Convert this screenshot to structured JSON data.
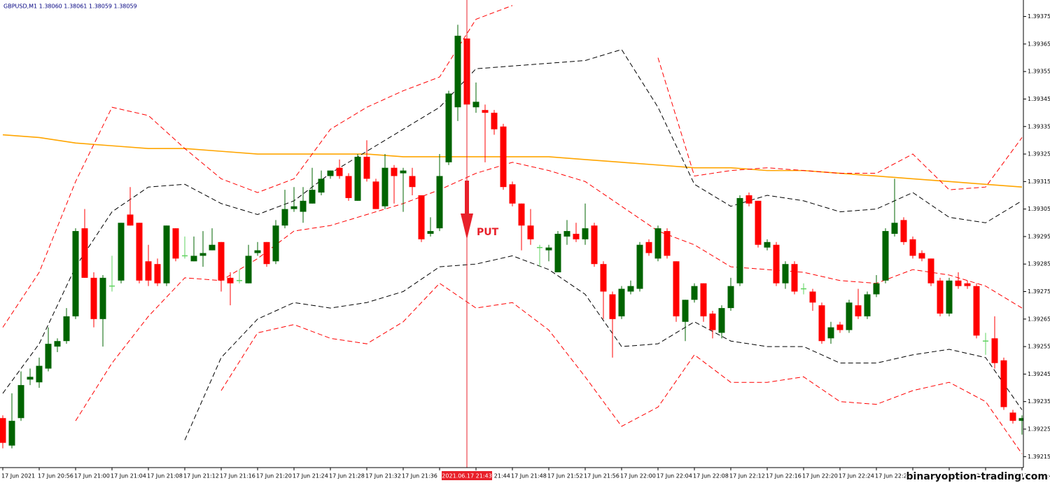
{
  "chart_data": {
    "type": "candlestick",
    "header": "GBPUSD,M1  1.38060 1.38061 1.38059 1.38059",
    "ylim": [
      1.39211,
      1.39381
    ],
    "yticks": [
      1.39215,
      1.39225,
      1.39235,
      1.39245,
      1.39255,
      1.39265,
      1.39275,
      1.39285,
      1.39295,
      1.39305,
      1.39315,
      1.39325,
      1.39335,
      1.39345,
      1.39355,
      1.39365,
      1.39375
    ],
    "x_labels": [
      "17 Jun 2021",
      "17 Jun 20:56",
      "17 Jun 21:00",
      "17 Jun 21:04",
      "17 Jun 21:08",
      "17 Jun 21:12",
      "17 Jun 21:16",
      "17 Jun 21:20",
      "17 Jun 21:24",
      "17 Jun 21:28",
      "17 Jun 21:32",
      "17 Jun 21:36",
      null,
      "17 Jun 21:44",
      "17 Jun 21:48",
      "17 Jun 21:52",
      "17 Jun 21:56",
      "17 Jun 22:00",
      "17 Jun 22:04",
      "17 Jun 22:08",
      "17 Jun 22:12",
      "17 Jun 22:16",
      "17 Jun 22:20",
      "17 Jun 22:24",
      "17 Jun 22:28",
      "17 Jun 22:32",
      "17 Jun 22:36",
      "17 Jun 22:40",
      "17 Jun 22:4"
    ],
    "marker_label": "2021.06.17 21:43",
    "signal": "PUT",
    "watermark": "binaryoption-trading.com",
    "bull_color": "#006400",
    "bear_color": "#ff0000",
    "doji_color": "#5fd35f",
    "signal_color": "#e8202a",
    "candles": {
      "open": [
        1.39229,
        1.39219,
        1.39229,
        1.39243,
        1.39242,
        1.39247,
        1.39255,
        1.39257,
        1.39266,
        1.39298,
        1.3928,
        1.39265,
        1.39277,
        1.39279,
        1.39303,
        1.393,
        1.39286,
        1.39285,
        1.39278,
        1.39298,
        1.39288,
        1.39286,
        1.39288,
        1.3929,
        1.39293,
        1.3928,
        1.39279,
        1.39278,
        1.39289,
        1.39293,
        1.39286,
        1.39299,
        1.39305,
        1.39304,
        1.39307,
        1.39311,
        1.39317,
        1.3932,
        1.39317,
        1.39308,
        1.39324,
        1.39315,
        1.39306,
        1.3932,
        1.39318,
        1.39317,
        1.3931,
        1.39296,
        1.39298,
        1.39322,
        1.39342,
        1.39367,
        1.39342,
        1.39341,
        1.3934,
        1.39335,
        1.39314,
        1.39307,
        1.39299,
        1.39291,
        1.3929,
        1.39282,
        1.39295,
        1.39296,
        1.39294,
        1.39299,
        1.39285,
        1.39274,
        1.39266,
        1.39275,
        1.39276,
        1.39293,
        1.39287,
        1.39297,
        1.39286,
        1.39264,
        1.39272,
        1.39278,
        1.39267,
        1.3926,
        1.39269,
        1.39278,
        1.3931,
        1.39308,
        1.39291,
        1.39292,
        1.39278,
        1.39285,
        1.39276,
        1.39275,
        1.3927,
        1.39258,
        1.39263,
        1.39261,
        1.3927,
        1.39266,
        1.39274,
        1.39279,
        1.39296,
        1.39301,
        1.39294,
        1.39289,
        1.39287,
        1.39279,
        1.39267,
        1.39279,
        1.39278,
        1.39277,
        1.39257,
        1.39258,
        1.3925,
        1.39231,
        1.39228
      ],
      "high": [
        1.3923,
        1.39238,
        1.39246,
        1.39247,
        1.39251,
        1.39262,
        1.39258,
        1.39269,
        1.39298,
        1.39305,
        1.39282,
        1.39281,
        1.39288,
        1.393,
        1.39313,
        1.393,
        1.39292,
        1.39287,
        1.39299,
        1.39298,
        1.39295,
        1.39295,
        1.39297,
        1.39298,
        1.39293,
        1.39282,
        1.39283,
        1.39292,
        1.39293,
        1.39293,
        1.39301,
        1.39312,
        1.39313,
        1.39313,
        1.3932,
        1.39319,
        1.39319,
        1.39323,
        1.39318,
        1.39325,
        1.3933,
        1.39316,
        1.39325,
        1.39321,
        1.3932,
        1.3932,
        1.3931,
        1.39302,
        1.39325,
        1.39348,
        1.39372,
        1.3937,
        1.39351,
        1.39343,
        1.39341,
        1.39336,
        1.39315,
        1.39307,
        1.39305,
        1.39292,
        1.39292,
        1.39297,
        1.39301,
        1.393,
        1.39307,
        1.393,
        1.39286,
        1.39275,
        1.39277,
        1.39279,
        1.39293,
        1.39294,
        1.39299,
        1.39298,
        1.39286,
        1.39272,
        1.39278,
        1.39278,
        1.39268,
        1.3927,
        1.3928,
        1.3931,
        1.39311,
        1.39308,
        1.39294,
        1.39293,
        1.39286,
        1.39286,
        1.39278,
        1.39276,
        1.39271,
        1.39264,
        1.39264,
        1.39272,
        1.39276,
        1.39275,
        1.39281,
        1.39298,
        1.39316,
        1.39302,
        1.39295,
        1.3929,
        1.39287,
        1.3928,
        1.3928,
        1.39282,
        1.39279,
        1.39278,
        1.3926,
        1.39266,
        1.39251,
        1.39232,
        1.3923
      ],
      "low": [
        1.39218,
        1.39218,
        1.39228,
        1.39241,
        1.3924,
        1.39246,
        1.39253,
        1.39256,
        1.39265,
        1.3928,
        1.39262,
        1.39255,
        1.39275,
        1.39278,
        1.39299,
        1.39278,
        1.39277,
        1.39277,
        1.39277,
        1.39286,
        1.39287,
        1.39286,
        1.39284,
        1.3929,
        1.39275,
        1.3927,
        1.39278,
        1.39278,
        1.39288,
        1.39284,
        1.39285,
        1.39298,
        1.39304,
        1.393,
        1.39307,
        1.3931,
        1.39316,
        1.39316,
        1.39308,
        1.39308,
        1.39315,
        1.39305,
        1.39305,
        1.39307,
        1.39304,
        1.3931,
        1.39293,
        1.39295,
        1.39297,
        1.39321,
        1.39337,
        1.39338,
        1.3934,
        1.39322,
        1.39332,
        1.39312,
        1.39306,
        1.3929,
        1.39292,
        1.39284,
        1.39286,
        1.39282,
        1.39292,
        1.39293,
        1.39292,
        1.39284,
        1.39265,
        1.39251,
        1.39265,
        1.39274,
        1.39275,
        1.39288,
        1.39286,
        1.39287,
        1.39264,
        1.39257,
        1.39271,
        1.39264,
        1.39258,
        1.39258,
        1.39268,
        1.39277,
        1.39306,
        1.39291,
        1.3929,
        1.39277,
        1.39276,
        1.39274,
        1.39274,
        1.39268,
        1.39256,
        1.39256,
        1.3926,
        1.3926,
        1.39265,
        1.39265,
        1.39273,
        1.39278,
        1.39295,
        1.39292,
        1.39287,
        1.39286,
        1.39277,
        1.39266,
        1.39266,
        1.39276,
        1.39276,
        1.39258,
        1.39252,
        1.39247,
        1.39232,
        1.39227,
        1.39223
      ],
      "close": [
        1.3922,
        1.39228,
        1.39241,
        1.39244,
        1.39248,
        1.39256,
        1.39257,
        1.39266,
        1.39297,
        1.3928,
        1.39265,
        1.3928,
        1.39277,
        1.393,
        1.39299,
        1.39279,
        1.39279,
        1.39278,
        1.39299,
        1.39287,
        1.39288,
        1.39288,
        1.39289,
        1.39292,
        1.39279,
        1.39278,
        1.39279,
        1.39288,
        1.3929,
        1.39285,
        1.39299,
        1.39305,
        1.39306,
        1.39308,
        1.39312,
        1.39316,
        1.39319,
        1.39317,
        1.39309,
        1.39324,
        1.39316,
        1.39305,
        1.3932,
        1.39317,
        1.39319,
        1.39313,
        1.39294,
        1.39297,
        1.39317,
        1.39347,
        1.39368,
        1.39343,
        1.39344,
        1.3934,
        1.39334,
        1.39313,
        1.39307,
        1.39299,
        1.39294,
        1.39291,
        1.39291,
        1.39296,
        1.39297,
        1.39294,
        1.39298,
        1.39285,
        1.39275,
        1.39265,
        1.39276,
        1.39277,
        1.39292,
        1.39289,
        1.39298,
        1.39288,
        1.39266,
        1.39272,
        1.39277,
        1.39266,
        1.39261,
        1.39269,
        1.39277,
        1.39309,
        1.39307,
        1.39292,
        1.39293,
        1.39278,
        1.39285,
        1.39275,
        1.39276,
        1.39271,
        1.39257,
        1.39262,
        1.39261,
        1.39271,
        1.39266,
        1.39274,
        1.39278,
        1.39297,
        1.393,
        1.39293,
        1.39288,
        1.39287,
        1.39278,
        1.39267,
        1.39279,
        1.39277,
        1.39277,
        1.39259,
        1.39257,
        1.39249,
        1.39233,
        1.39228,
        1.39229
      ]
    },
    "lines": [
      {
        "color": "#ffa500",
        "style": "solid",
        "values": [
          1.39332,
          1.39331,
          1.39329,
          1.39328,
          1.39327,
          1.39327,
          1.39326,
          1.39325,
          1.39325,
          1.39325,
          1.39325,
          1.39324,
          1.39324,
          1.39324,
          1.39324,
          1.39324,
          1.39323,
          1.39322,
          1.39321,
          1.3932,
          1.3932,
          1.39319,
          1.39319,
          1.39318,
          1.39317,
          1.39316,
          1.39315,
          1.39314,
          1.39313
        ]
      },
      {
        "color": "#000000",
        "style": "dashed",
        "values": [
          1.39238,
          1.39256,
          1.39284,
          1.39304,
          1.39313,
          1.39314,
          1.39307,
          1.39303,
          1.39308,
          1.39318,
          1.39326,
          1.39334,
          1.39342,
          1.39356,
          1.39357,
          1.39358,
          1.39359,
          1.39363,
          1.39342,
          1.39314,
          1.39306,
          1.3931,
          1.39308,
          1.39304,
          1.39305,
          1.39311,
          1.39302,
          1.393,
          1.39308
        ]
      },
      {
        "color": "#000000",
        "style": "dashed",
        "values": [
          null,
          null,
          null,
          null,
          null,
          1.39221,
          1.39251,
          1.39265,
          1.39271,
          1.39269,
          1.39271,
          1.39275,
          1.39284,
          1.39285,
          1.39288,
          1.39283,
          1.39274,
          1.39255,
          1.39256,
          1.39264,
          1.39257,
          1.39255,
          1.39255,
          1.39249,
          1.39249,
          1.39252,
          1.39254,
          1.39251,
          1.39232
        ]
      },
      {
        "color": "#ff0000",
        "style": "dashed",
        "values": [
          1.39262,
          1.39282,
          1.39315,
          1.39342,
          1.39339,
          1.39327,
          1.39316,
          1.39311,
          1.39316,
          1.39334,
          1.39342,
          1.39348,
          1.39353,
          1.39374,
          1.39379,
          null,
          null,
          null,
          1.3936,
          1.39317,
          1.39319,
          1.3932,
          1.39319,
          1.39318,
          1.39318,
          1.39325,
          1.39312,
          1.39313,
          1.39331
        ]
      },
      {
        "color": "#ff0000",
        "style": "dashed",
        "values": [
          null,
          null,
          1.39228,
          1.39249,
          1.39266,
          1.3928,
          1.39279,
          1.39287,
          1.39297,
          1.39299,
          1.39303,
          1.39307,
          1.39312,
          1.39318,
          1.39322,
          1.39319,
          1.39315,
          1.39306,
          1.39297,
          1.39292,
          1.39284,
          1.39283,
          1.39282,
          1.39279,
          1.39278,
          1.39283,
          1.39281,
          1.39277,
          1.39269
        ]
      },
      {
        "color": "#ff0000",
        "style": "dashed",
        "values": [
          null,
          null,
          null,
          null,
          null,
          null,
          1.39239,
          1.3926,
          1.39263,
          1.39258,
          1.39256,
          1.39264,
          1.39278,
          1.39269,
          1.39271,
          1.39261,
          1.39244,
          1.39226,
          1.39233,
          1.39252,
          1.39242,
          1.39242,
          1.39244,
          1.39235,
          1.39234,
          1.39239,
          1.39242,
          1.39235,
          1.39216
        ]
      }
    ]
  }
}
